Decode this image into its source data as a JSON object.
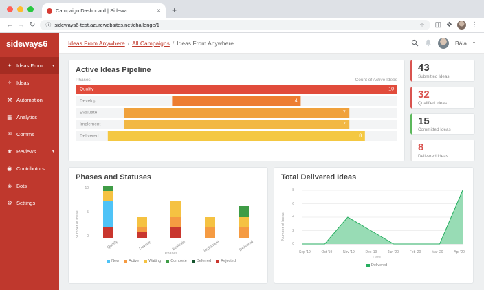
{
  "browser": {
    "tab_title": "Campaign Dashboard | Sidewa...",
    "url": "sideways6-test.azurewebsites.net/challenge/1"
  },
  "icons": {
    "close": "✕",
    "new_tab": "+",
    "back": "←",
    "forward": "→",
    "reload": "↻",
    "info": "ⓘ",
    "star": "☆",
    "side_panel": "◫",
    "extensions": "❖",
    "menu": "⋮",
    "chevron_down": "▾"
  },
  "sidebar": {
    "logo": "sideways6",
    "items": [
      {
        "id": "ideas-from",
        "label": "Ideas From ...",
        "icon": "lightbulb",
        "glyph": "✦",
        "active": true,
        "chevron": true
      },
      {
        "id": "ideas",
        "label": "Ideas",
        "icon": "idea",
        "glyph": "✧",
        "active": false,
        "chevron": false
      },
      {
        "id": "automation",
        "label": "Automation",
        "icon": "automation",
        "glyph": "⚒",
        "active": false,
        "chevron": false
      },
      {
        "id": "analytics",
        "label": "Analytics",
        "icon": "bar-chart",
        "glyph": "▦",
        "active": false,
        "chevron": false
      },
      {
        "id": "comms",
        "label": "Comms",
        "icon": "envelope",
        "glyph": "✉",
        "active": false,
        "chevron": false
      },
      {
        "id": "reviews",
        "label": "Reviews",
        "icon": "star",
        "glyph": "★",
        "active": false,
        "chevron": true
      },
      {
        "id": "contributors",
        "label": "Contributors",
        "icon": "users",
        "glyph": "◉",
        "active": false,
        "chevron": false
      },
      {
        "id": "bots",
        "label": "Bots",
        "icon": "robot",
        "glyph": "◈",
        "active": false,
        "chevron": false
      },
      {
        "id": "settings",
        "label": "Settings",
        "icon": "gear",
        "glyph": "⚙",
        "active": false,
        "chevron": false
      }
    ]
  },
  "header": {
    "separator": "/",
    "breadcrumb": [
      {
        "label": "Ideas From Anywhere",
        "link": true
      },
      {
        "label": "All Campaigns",
        "link": true
      },
      {
        "label": "Ideas From Anywhere",
        "link": false
      }
    ],
    "user_name": "Bála"
  },
  "pipeline": {
    "title": "Active Ideas Pipeline",
    "axis_left": "Phases",
    "axis_right": "Count of Active Ideas",
    "chart_data": {
      "type": "funnel",
      "max": 10,
      "rows": [
        {
          "phase": "Qualify",
          "value": 10,
          "color": "#e14b3b"
        },
        {
          "phase": "Develop",
          "value": 4,
          "color": "#ed7d31"
        },
        {
          "phase": "Evaluate",
          "value": 7,
          "color": "#f0a13c"
        },
        {
          "phase": "Implement",
          "value": 7,
          "color": "#f2b844"
        },
        {
          "phase": "Delivered",
          "value": 8,
          "color": "#f4c842"
        }
      ]
    }
  },
  "stats": [
    {
      "value": "43",
      "label": "Submitted Ideas",
      "accent": "#d9534f",
      "value_color": "#3f3f3f"
    },
    {
      "value": "32",
      "label": "Qualified Ideas",
      "accent": "#d9534f",
      "value_color": "#d9534f"
    },
    {
      "value": "15",
      "label": "Committed Ideas",
      "accent": "#5cb85c",
      "value_color": "#3f3f3f"
    },
    {
      "value": "8",
      "label": "Delivered Ideas",
      "accent": "#e3e3e3",
      "value_color": "#d9534f"
    }
  ],
  "phases_chart": {
    "title": "Phases and Statuses",
    "chart_data": {
      "type": "bar",
      "stacked": true,
      "categories": [
        "Qualify",
        "Develop",
        "Evaluate",
        "Implement",
        "Delivered"
      ],
      "series": [
        {
          "name": "Rejected",
          "color": "#c9362e",
          "values": [
            2,
            1,
            2,
            0,
            0
          ]
        },
        {
          "name": "New",
          "color": "#4fc3f7",
          "values": [
            5,
            0,
            0,
            0,
            0
          ]
        },
        {
          "name": "Active",
          "color": "#f59b42",
          "values": [
            0,
            1,
            2,
            2,
            2
          ]
        },
        {
          "name": "Waiting",
          "color": "#f5c242",
          "values": [
            2,
            2,
            3,
            2,
            2
          ]
        },
        {
          "name": "Complete",
          "color": "#3f9c46",
          "values": [
            1,
            0,
            0,
            0,
            2
          ]
        },
        {
          "name": "Deferred",
          "color": "#14532d",
          "values": [
            0,
            0,
            0,
            0,
            0
          ]
        }
      ],
      "legend_order": [
        "New",
        "Active",
        "Waiting",
        "Complete",
        "Deferred",
        "Rejected"
      ],
      "ylabel": "Number of Ideas",
      "xlabel": "Phases",
      "ylim": [
        0,
        10
      ],
      "yticks": [
        0,
        5,
        10
      ]
    }
  },
  "delivered_chart": {
    "title": "Total Delivered Ideas",
    "chart_data": {
      "type": "area",
      "x": [
        "Sep '19",
        "Oct '19",
        "Nov '19",
        "Dec '19",
        "Jan '20",
        "Feb '20",
        "Mar '20",
        "Apr '20"
      ],
      "series": [
        {
          "name": "Delivered",
          "color": "#27ae60",
          "fill": "#98dcb5",
          "values": [
            0,
            0,
            4,
            2,
            0,
            0,
            0,
            8
          ]
        }
      ],
      "ylabel": "Number of Ideas",
      "xlabel": "Date",
      "ylim": [
        0,
        8
      ],
      "yticks": [
        0,
        2,
        4,
        6,
        8
      ]
    }
  }
}
